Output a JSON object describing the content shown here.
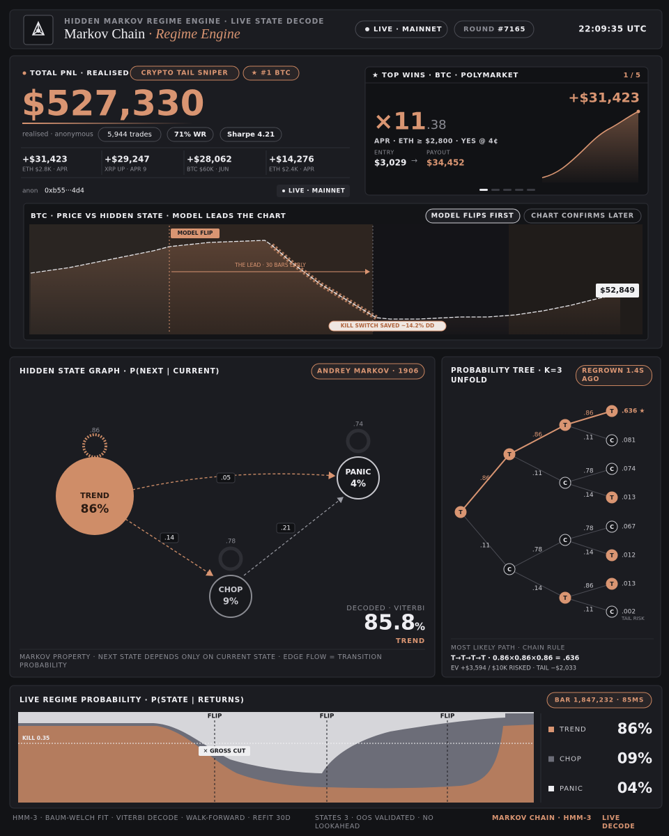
{
  "header": {
    "kicker": "HIDDEN MARKOV REGIME ENGINE · LIVE STATE DECODE",
    "title": "Markov Chain",
    "title_accent": "· Regime Engine",
    "status": "LIVE · MAINNET",
    "round_label": "ROUND",
    "round": "#7165",
    "time": "22:09:35 UTC"
  },
  "pnl": {
    "label": "TOTAL PNL · REALISED",
    "badges": [
      "CRYPTO TAIL SNIPER",
      "★ #1 BTC"
    ],
    "total": "$527,330",
    "note": "realised · anonymous",
    "stats": [
      "5,944 trades",
      "71% WR",
      "Sharpe 4.21"
    ],
    "wins": [
      {
        "amount": "+$31,423",
        "desc": "ETH $2.8K · APR"
      },
      {
        "amount": "+$29,247",
        "desc": "XRP UP · APR 9"
      },
      {
        "amount": "+$28,062",
        "desc": "BTC $60K · JUN"
      },
      {
        "amount": "+$14,276",
        "desc": "ETH $2.4K · APR"
      }
    ],
    "wallet_label": "anon",
    "wallet": "0xb55···4d4",
    "status": "LIVE · MAINNET"
  },
  "top_wins": {
    "title": "★ TOP WINS · BTC · POLYMARKET",
    "page": "1 / 5",
    "profit": "+$31,423",
    "multiple": "×11",
    "multiple_decimals": ".38",
    "market": "APR · ETH ≥ $2,800 · YES @ 4¢",
    "entry_label": "ENTRY",
    "entry": "$3,029",
    "arrow": "→",
    "payout_label": "PAYOUT",
    "payout": "$34,452"
  },
  "price_panel": {
    "title": "BTC · PRICE VS HIDDEN STATE · MODEL LEADS THE CHART",
    "buttons": [
      "MODEL FLIPS FIRST",
      "CHART CONFIRMS LATER"
    ],
    "flip": "MODEL FLIP",
    "lead": "THE LEAD · 30 BARS EARLY",
    "kill": "KILL SWITCH SAVED ~14.2% DD",
    "last_price": "$52,849"
  },
  "state_graph": {
    "title": "HIDDEN STATE GRAPH · P(NEXT | CURRENT)",
    "badge": "ANDREY MARKOV · 1906",
    "nodes": [
      {
        "name": "TREND",
        "pct": "86%",
        "stay": ".86"
      },
      {
        "name": "CHOP",
        "pct": "9%",
        "stay": ".78"
      },
      {
        "name": "PANIC",
        "pct": "4%",
        "stay": ".74"
      }
    ],
    "edges": [
      ".05",
      ".14",
      ".21"
    ],
    "decoded_label": "DECODED · VITERBI",
    "decoded": "85.8",
    "decoded_unit": "%",
    "decoded_state": "TREND",
    "footer": "MARKOV PROPERTY · NEXT STATE DEPENDS ONLY ON CURRENT STATE · EDGE FLOW = TRANSITION PROBABILITY"
  },
  "tree": {
    "title": "PROBABILITY TREE · K=3 UNFOLD",
    "badge": "REGROWN 1.4S AGO",
    "nodes": [
      "T",
      "T",
      "C",
      "T",
      "C",
      "C",
      "T",
      "T",
      "C",
      "C",
      "T",
      "C",
      "T",
      "T",
      "C"
    ],
    "edges": [
      ".86",
      ".11",
      ".86",
      ".11",
      ".78",
      ".14",
      ".86",
      ".11",
      ".78",
      ".14",
      ".78",
      ".14",
      ".86",
      ".11"
    ],
    "leaves": [
      ".636 ★",
      ".081",
      ".074",
      ".013",
      ".067",
      ".012",
      ".013",
      ".002"
    ],
    "tail_note": "TAIL RISK",
    "footer_label": "MOST LIKELY PATH · CHAIN RULE",
    "formula": "T→T→T→T · 0.86×0.86×0.86 = .636",
    "ev": "EV +$3,594 / $10K RISKED · TAIL −$2,033"
  },
  "regime": {
    "title": "LIVE REGIME PROBABILITY · P(STATE | RETURNS)",
    "badge": "BAR 1,847,232 · 85MS",
    "flags": [
      "FLIP",
      "FLIP",
      "FLIP"
    ],
    "kill": "KILL 0.35",
    "cut": "✕ GROSS CUT",
    "legend": [
      {
        "name": "TREND",
        "value": "86%"
      },
      {
        "name": "CHOP",
        "value": "09%"
      },
      {
        "name": "PANIC",
        "value": "04%"
      }
    ]
  },
  "footer": {
    "left": "HMM-3 · BAUM-WELCH FIT · VITERBI DECODE · WALK-FORWARD · REFIT 30D",
    "middle": "STATES 3 · OOS VALIDATED · NO LOOKAHEAD",
    "right": "MARKOV CHAIN · HMM-3",
    "right2": "LIVE DECODE"
  }
}
